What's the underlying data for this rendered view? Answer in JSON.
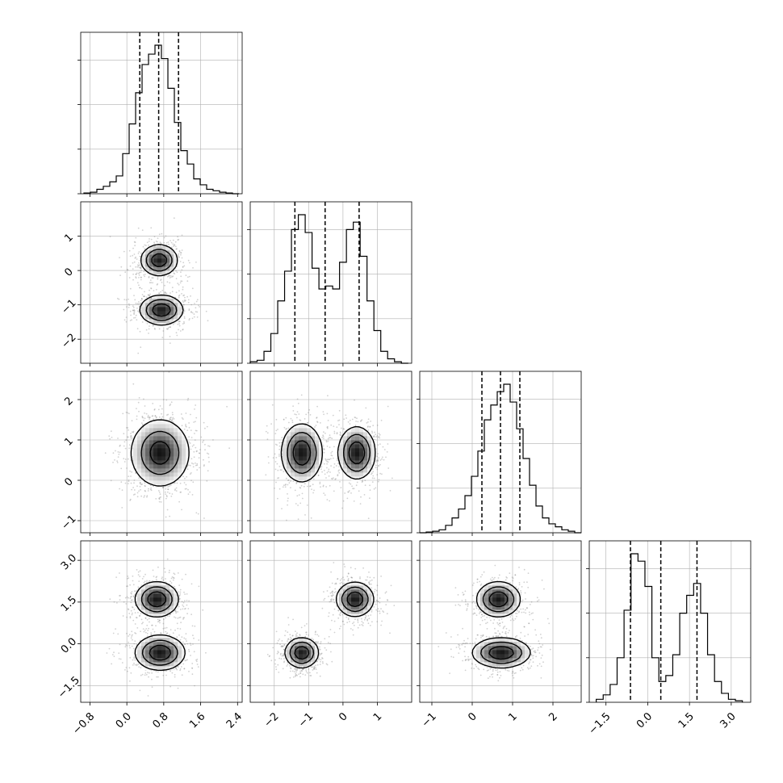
{
  "chart_data": {
    "type": "corner",
    "ndim": 4,
    "grid": true,
    "xlabels": [
      "",
      "",
      "",
      ""
    ],
    "ylabels": [
      "",
      "",
      "",
      ""
    ],
    "params": [
      {
        "range": [
          -1.0,
          2.5
        ],
        "ticks": [
          -0.8,
          0.0,
          0.8,
          1.6,
          2.4
        ],
        "tick_labels": [
          "−0.8",
          "0.0",
          "0.8",
          "1.6",
          "2.4"
        ],
        "quantiles": [
          0.28,
          0.69,
          1.12
        ],
        "hist": {
          "edges": [
            -0.93,
            -0.79,
            -0.65,
            -0.51,
            -0.37,
            -0.23,
            -0.09,
            0.05,
            0.19,
            0.33,
            0.47,
            0.61,
            0.75,
            0.89,
            1.03,
            1.17,
            1.31,
            1.45,
            1.59,
            1.73,
            1.87,
            2.01,
            2.15,
            2.29,
            2.43
          ],
          "counts": [
            0.005,
            0.01,
            0.03,
            0.05,
            0.08,
            0.12,
            0.27,
            0.47,
            0.68,
            0.87,
            0.94,
            1.0,
            0.91,
            0.71,
            0.48,
            0.29,
            0.2,
            0.1,
            0.06,
            0.03,
            0.02,
            0.01,
            0.005,
            0.0
          ]
        }
      },
      {
        "range": [
          -2.7,
          2.0
        ],
        "ticks": [
          -2,
          -1,
          0,
          1
        ],
        "tick_labels": [
          "−2",
          "−1",
          "0",
          "1"
        ],
        "quantiles": [
          -1.4,
          -0.52,
          0.47
        ],
        "hist": {
          "edges": [
            -2.7,
            -2.5,
            -2.3,
            -2.1,
            -1.9,
            -1.7,
            -1.5,
            -1.3,
            -1.1,
            -0.9,
            -0.7,
            -0.5,
            -0.3,
            -0.1,
            0.1,
            0.3,
            0.5,
            0.7,
            0.9,
            1.1,
            1.3,
            1.5,
            1.7,
            1.9
          ],
          "counts": [
            0.01,
            0.02,
            0.08,
            0.2,
            0.42,
            0.62,
            0.9,
            1.0,
            0.88,
            0.64,
            0.5,
            0.52,
            0.5,
            0.68,
            0.9,
            0.95,
            0.72,
            0.42,
            0.22,
            0.08,
            0.03,
            0.01,
            0.0
          ]
        }
      },
      {
        "range": [
          -1.3,
          2.7
        ],
        "ticks": [
          -1,
          0,
          1,
          2
        ],
        "tick_labels": [
          "−1",
          "0",
          "1",
          "2"
        ],
        "quantiles": [
          0.24,
          0.7,
          1.18
        ],
        "hist": {
          "edges": [
            -1.3,
            -1.14,
            -0.98,
            -0.82,
            -0.66,
            -0.5,
            -0.34,
            -0.18,
            -0.02,
            0.14,
            0.3,
            0.46,
            0.62,
            0.78,
            0.94,
            1.1,
            1.26,
            1.42,
            1.58,
            1.74,
            1.9,
            2.06,
            2.22,
            2.38,
            2.54,
            2.7
          ],
          "counts": [
            0.0,
            0.005,
            0.01,
            0.02,
            0.05,
            0.1,
            0.16,
            0.25,
            0.38,
            0.55,
            0.76,
            0.86,
            0.95,
            1.0,
            0.88,
            0.7,
            0.5,
            0.32,
            0.18,
            0.1,
            0.06,
            0.04,
            0.02,
            0.01,
            0.0
          ]
        }
      },
      {
        "range": [
          -2.1,
          3.7
        ],
        "ticks": [
          -1.5,
          0.0,
          1.5,
          3.0
        ],
        "tick_labels": [
          "−1.5",
          "0.0",
          "1.5",
          "3.0"
        ],
        "quantiles": [
          -0.62,
          0.47,
          1.77
        ],
        "hist": {
          "edges": [
            -1.85,
            -1.6,
            -1.35,
            -1.1,
            -0.85,
            -0.6,
            -0.35,
            -0.1,
            0.15,
            0.4,
            0.65,
            0.9,
            1.15,
            1.4,
            1.65,
            1.9,
            2.15,
            2.4,
            2.65,
            2.9,
            3.15,
            3.4
          ],
          "counts": [
            0.02,
            0.05,
            0.12,
            0.3,
            0.62,
            1.0,
            0.95,
            0.78,
            0.3,
            0.14,
            0.18,
            0.32,
            0.6,
            0.72,
            0.8,
            0.6,
            0.32,
            0.14,
            0.06,
            0.02,
            0.01
          ]
        }
      }
    ],
    "panels": [
      {
        "x": 0,
        "y": 1,
        "components": [
          {
            "mean": [
              0.7,
              0.3
            ],
            "sd": [
              0.22,
              0.25
            ],
            "w": 0.5
          },
          {
            "mean": [
              0.75,
              -1.15
            ],
            "sd": [
              0.26,
              0.24
            ],
            "w": 0.5
          }
        ],
        "contour_levels": [
          0.2,
          0.45,
          0.75
        ]
      },
      {
        "x": 0,
        "y": 2,
        "components": [
          {
            "mean": [
              0.72,
              0.68
            ],
            "sd": [
              0.32,
              0.42
            ],
            "w": 1.0
          }
        ],
        "contour_levels": [
          0.15,
          0.45,
          0.8
        ]
      },
      {
        "x": 1,
        "y": 2,
        "components": [
          {
            "mean": [
              -1.2,
              0.68
            ],
            "sd": [
              0.33,
              0.4
            ],
            "w": 0.5
          },
          {
            "mean": [
              0.4,
              0.68
            ],
            "sd": [
              0.3,
              0.36
            ],
            "w": 0.5
          }
        ],
        "contour_levels": [
          0.2,
          0.45,
          0.75
        ]
      },
      {
        "x": 0,
        "y": 3,
        "components": [
          {
            "mean": [
              0.65,
              1.6
            ],
            "sd": [
              0.26,
              0.35
            ],
            "w": 0.5
          },
          {
            "mean": [
              0.72,
              -0.32
            ],
            "sd": [
              0.3,
              0.35
            ],
            "w": 0.5
          }
        ],
        "contour_levels": [
          0.2,
          0.45,
          0.75
        ]
      },
      {
        "x": 1,
        "y": 3,
        "components": [
          {
            "mean": [
              -1.2,
              -0.32
            ],
            "sd": [
              0.27,
              0.3
            ],
            "w": 0.5
          },
          {
            "mean": [
              0.35,
              1.6
            ],
            "sd": [
              0.3,
              0.34
            ],
            "w": 0.5
          }
        ],
        "contour_levels": [
          0.2,
          0.45,
          0.75
        ]
      },
      {
        "x": 2,
        "y": 3,
        "components": [
          {
            "mean": [
              0.65,
              1.6
            ],
            "sd": [
              0.3,
              0.35
            ],
            "w": 0.5
          },
          {
            "mean": [
              0.72,
              -0.32
            ],
            "sd": [
              0.4,
              0.3
            ],
            "w": 0.5
          }
        ],
        "contour_levels": [
          0.2,
          0.45,
          0.75
        ]
      }
    ]
  }
}
